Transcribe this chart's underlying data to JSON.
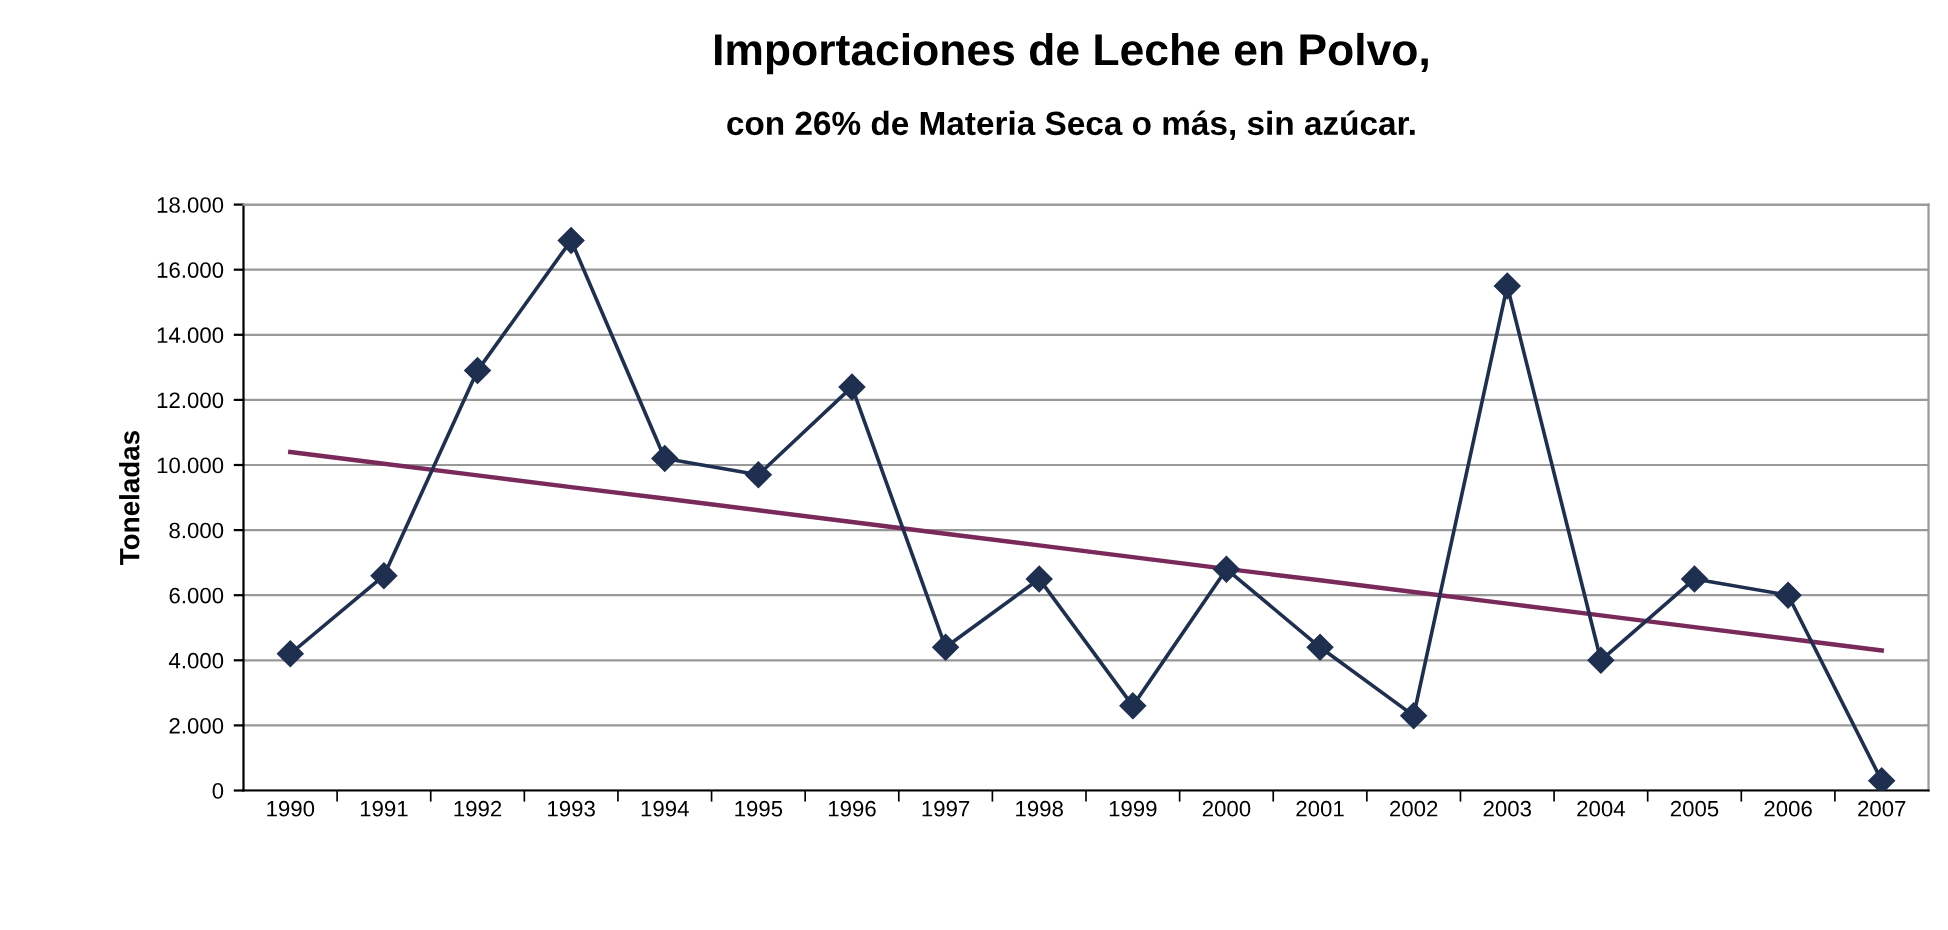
{
  "chart_data": {
    "type": "line",
    "title": "Importaciones de Leche en Polvo,",
    "subtitle": "con 26% de Materia Seca o más, sin azúcar.",
    "ylabel": "Toneladas",
    "categories": [
      "1990",
      "1991",
      "1992",
      "1993",
      "1994",
      "1995",
      "1996",
      "1997",
      "1998",
      "1999",
      "2000",
      "2001",
      "2002",
      "2003",
      "2004",
      "2005",
      "2006",
      "2007"
    ],
    "series": [
      {
        "color": "#1f2f4f",
        "marker": "diamond",
        "values": [
          4200,
          6600,
          12900,
          16900,
          10200,
          9700,
          12400,
          4400,
          6500,
          2600,
          6800,
          4400,
          2300,
          15500,
          4000,
          6500,
          6000,
          300
        ]
      },
      {
        "type": "line",
        "color": "#7a2a5a",
        "marker": "none",
        "values": [
          10400,
          10040,
          9680,
          9320,
          8970,
          8610,
          8250,
          7890,
          7530,
          7170,
          6810,
          6460,
          6100,
          5740,
          5380,
          5020,
          4660,
          4300
        ]
      }
    ],
    "ylim": [
      0,
      18000
    ],
    "yticks": [
      {
        "value": 0,
        "label": "0"
      },
      {
        "value": 2000,
        "label": "2.000"
      },
      {
        "value": 4000,
        "label": "4.000"
      },
      {
        "value": 6000,
        "label": "6.000"
      },
      {
        "value": 8000,
        "label": "8.000"
      },
      {
        "value": 10000,
        "label": "10.000"
      },
      {
        "value": 12000,
        "label": "12.000"
      },
      {
        "value": 14000,
        "label": "14.000"
      },
      {
        "value": 16000,
        "label": "16.000"
      },
      {
        "value": 18000,
        "label": "18.000"
      }
    ],
    "grid": "y",
    "legend": false,
    "line_style": "solid"
  }
}
